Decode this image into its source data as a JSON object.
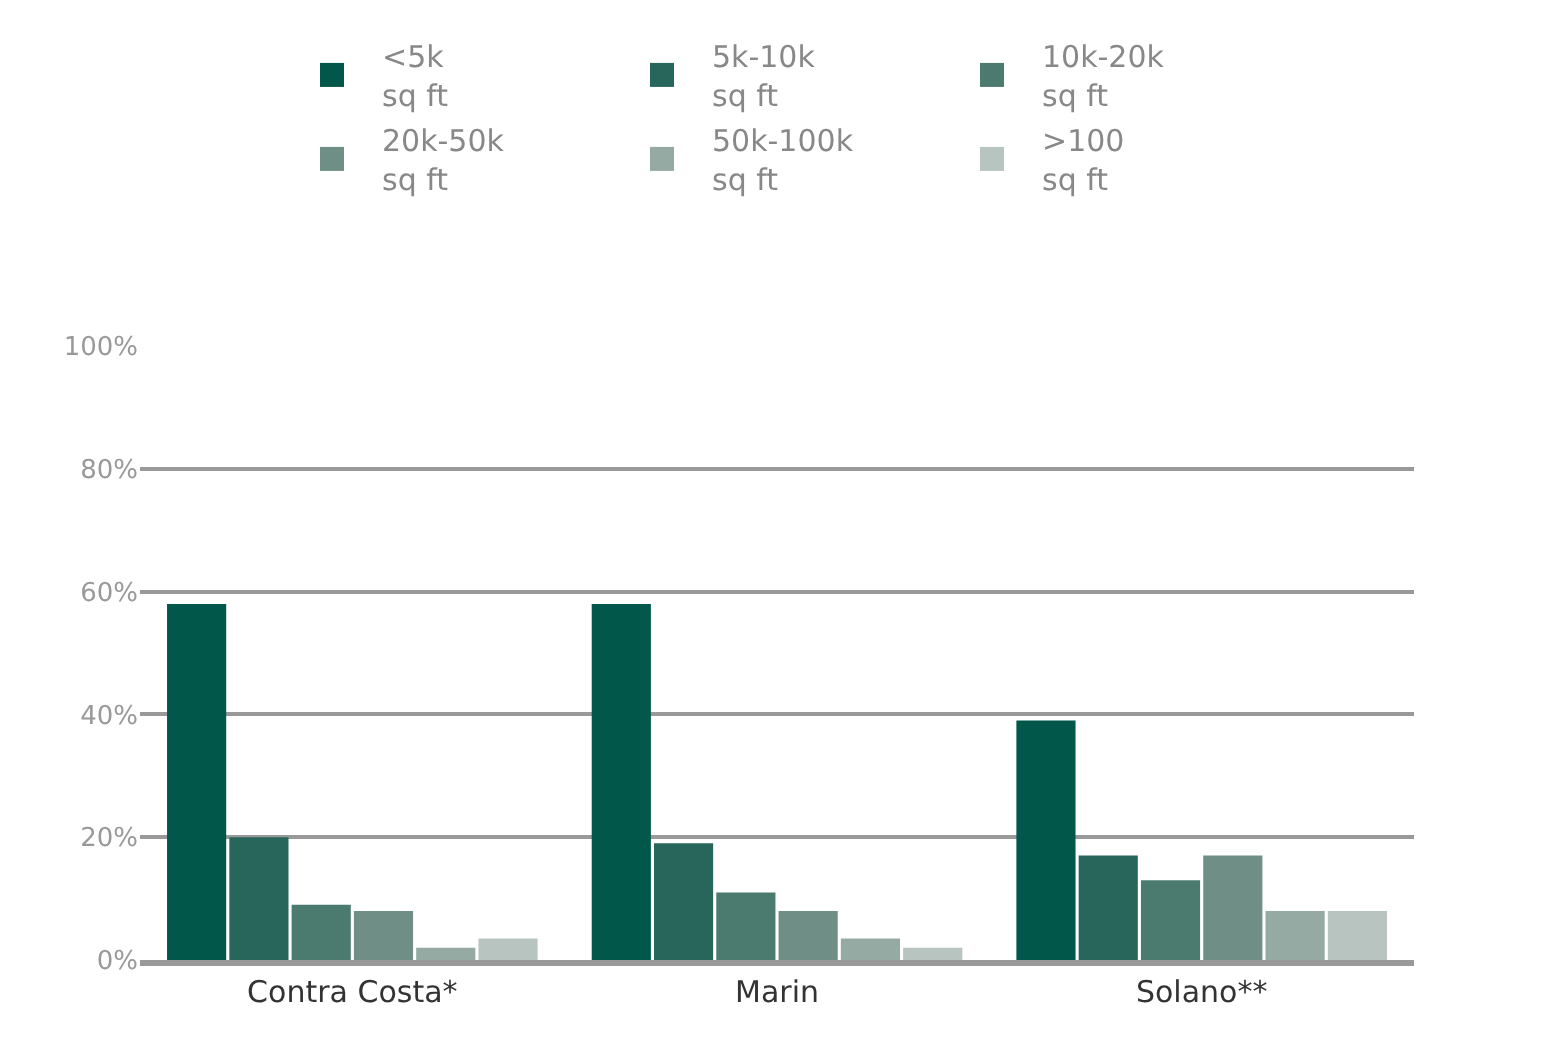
{
  "chart_data": {
    "type": "bar",
    "categories": [
      "Contra Costa*",
      "Marin",
      "Solano**"
    ],
    "series": [
      {
        "name": "<5k\nsq ft",
        "color": "#02574b",
        "values": [
          58,
          58,
          39
        ]
      },
      {
        "name": "5k-10k\nsq ft",
        "color": "#28665c",
        "values": [
          20,
          19,
          17
        ]
      },
      {
        "name": "10k-20k\nsq ft",
        "color": "#4b7a6f",
        "values": [
          9,
          11,
          13
        ]
      },
      {
        "name": "20k-50k\nsq ft",
        "color": "#6f8f86",
        "values": [
          8,
          8,
          17
        ]
      },
      {
        "name": "50k-100k\nsq ft",
        "color": "#95aaa3",
        "values": [
          2,
          3.5,
          8
        ]
      },
      {
        "name": ">100\nsq ft",
        "color": "#b8c4bf",
        "values": [
          3.5,
          2,
          8
        ]
      }
    ],
    "ylim": [
      0,
      100
    ],
    "yticks": [
      {
        "value": 0,
        "label": "0%"
      },
      {
        "value": 20,
        "label": "20%"
      },
      {
        "value": 40,
        "label": "40%"
      },
      {
        "value": 60,
        "label": "60%"
      },
      {
        "value": 80,
        "label": "80%"
      },
      {
        "value": 100,
        "label": "100%"
      }
    ],
    "grid": "y",
    "legend": "top"
  }
}
